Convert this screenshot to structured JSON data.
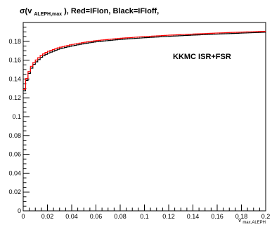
{
  "chart_data": {
    "type": "line",
    "title": {
      "sigma": "σ(v",
      "sub": "ALEPH,max",
      "rest": "),  Red=IFIon,  Black=IFIoff,"
    },
    "annotation": "KKMC ISR+FSR",
    "xlabel": {
      "main": "v",
      "sub": "max,ALEPH"
    },
    "ylabel": "",
    "xlim": [
      0,
      0.2
    ],
    "ylim": [
      0,
      0.2
    ],
    "x_ticks": [
      "0",
      "0.02",
      "0.04",
      "0.06",
      "0.08",
      "0.1",
      "0.12",
      "0.14",
      "0.16",
      "0.18",
      "0.2"
    ],
    "y_ticks": [
      "0",
      "0.02",
      "0.04",
      "0.06",
      "0.08",
      "0.1",
      "0.12",
      "0.14",
      "0.16",
      "0.18"
    ],
    "x_tick_values": [
      0,
      0.02,
      0.04,
      0.06,
      0.08,
      0.1,
      0.12,
      0.14,
      0.16,
      0.18,
      0.2
    ],
    "y_tick_values": [
      0,
      0.02,
      0.04,
      0.06,
      0.08,
      0.1,
      0.12,
      0.14,
      0.16,
      0.18
    ],
    "grid": false,
    "step_histogram": true,
    "bin_width": 0.002,
    "series": [
      {
        "label": "IFIoff",
        "color": "#000000",
        "x": [
          0,
          0.002,
          0.004,
          0.006,
          0.008,
          0.01,
          0.015,
          0.02,
          0.03,
          0.04,
          0.05,
          0.06,
          0.08,
          0.1,
          0.12,
          0.14,
          0.16,
          0.18,
          0.2
        ],
        "values": [
          0.121,
          0.134,
          0.143,
          0.149,
          0.154,
          0.157,
          0.163,
          0.167,
          0.172,
          0.175,
          0.1775,
          0.1795,
          0.182,
          0.1838,
          0.1853,
          0.1866,
          0.1877,
          0.1887,
          0.1897
        ]
      },
      {
        "label": "IFIon",
        "color": "#ff0000",
        "x": [
          0,
          0.002,
          0.004,
          0.006,
          0.008,
          0.01,
          0.015,
          0.02,
          0.03,
          0.04,
          0.05,
          0.06,
          0.08,
          0.1,
          0.12,
          0.14,
          0.16,
          0.18,
          0.2
        ],
        "values": [
          0.122,
          0.136,
          0.145,
          0.151,
          0.156,
          0.159,
          0.165,
          0.169,
          0.1735,
          0.1765,
          0.1788,
          0.1807,
          0.1832,
          0.185,
          0.1865,
          0.1877,
          0.1888,
          0.1898,
          0.1906
        ]
      }
    ]
  }
}
